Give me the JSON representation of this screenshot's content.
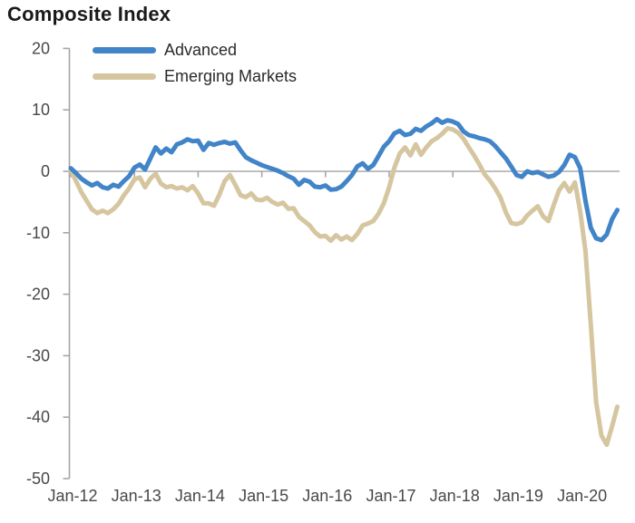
{
  "title": "Composite Index",
  "legend": [
    {
      "label": "Advanced",
      "color": "#4184c8"
    },
    {
      "label": "Emerging Markets",
      "color": "#d5c6a0"
    }
  ],
  "axes": {
    "y_tick_labels": [
      "20",
      "10",
      "0",
      "-10",
      "-20",
      "-30",
      "-40",
      "-50"
    ],
    "x_tick_labels": [
      "Jan-12",
      "Jan-13",
      "Jan-14",
      "Jan-15",
      "Jan-16",
      "Jan-17",
      "Jan-18",
      "Jan-19",
      "Jan-20"
    ]
  },
  "colors": {
    "axis": "#a6a6a6",
    "zero_line": "#aaaaaa",
    "tick_text": "#484848",
    "title_text": "#1a1a1a",
    "background": "#ffffff"
  },
  "chart_data": {
    "type": "line",
    "title": "Composite Index",
    "xlabel": "",
    "ylabel": "",
    "x_start": "Jan-2012",
    "x_end": "Aug-2020",
    "x_frequency": "monthly",
    "ylim": [
      -50,
      20
    ],
    "y_ticks": [
      20,
      10,
      0,
      -10,
      -20,
      -30,
      -40,
      -50
    ],
    "x_ticks": [
      "Jan-12",
      "Jan-13",
      "Jan-14",
      "Jan-15",
      "Jan-16",
      "Jan-17",
      "Jan-18",
      "Jan-19",
      "Jan-20"
    ],
    "grid": "zero-line-only",
    "legend_position": "top-left-inside",
    "series": [
      {
        "name": "Advanced",
        "color": "#4184c8",
        "values": [
          0.5,
          -0.3,
          -1.2,
          -1.8,
          -2.3,
          -1.9,
          -2.6,
          -2.8,
          -2.2,
          -2.5,
          -1.6,
          -0.8,
          0.6,
          1.1,
          0.3,
          2.1,
          3.9,
          2.9,
          3.7,
          3.1,
          4.4,
          4.7,
          5.2,
          4.9,
          5.0,
          3.5,
          4.6,
          4.3,
          4.6,
          4.8,
          4.5,
          4.7,
          3.4,
          2.3,
          1.8,
          1.4,
          1.0,
          0.7,
          0.4,
          0.1,
          -0.3,
          -0.8,
          -1.2,
          -2.2,
          -1.4,
          -1.7,
          -2.5,
          -2.6,
          -2.3,
          -3.0,
          -2.9,
          -2.5,
          -1.6,
          -0.6,
          0.8,
          1.3,
          0.4,
          1.0,
          2.5,
          4.0,
          4.9,
          6.2,
          6.6,
          5.9,
          6.1,
          6.9,
          6.6,
          7.3,
          7.8,
          8.5,
          7.9,
          8.3,
          8.1,
          7.7,
          6.5,
          5.9,
          5.7,
          5.4,
          5.2,
          4.9,
          4.1,
          3.1,
          2.1,
          0.8,
          -0.6,
          -0.9,
          0.0,
          -0.3,
          -0.1,
          -0.5,
          -0.9,
          -0.7,
          -0.1,
          1.0,
          2.7,
          2.3,
          0.5,
          -4.8,
          -9.2,
          -10.9,
          -11.2,
          -10.3,
          -7.8,
          -6.3
        ]
      },
      {
        "name": "Emerging Markets",
        "color": "#d5c6a0",
        "values": [
          0.2,
          -1.6,
          -3.4,
          -4.8,
          -6.2,
          -6.8,
          -6.4,
          -6.8,
          -6.2,
          -5.3,
          -3.9,
          -2.8,
          -1.3,
          -1.0,
          -2.6,
          -1.2,
          -0.4,
          -2.0,
          -2.6,
          -2.4,
          -2.8,
          -2.6,
          -3.1,
          -2.4,
          -3.6,
          -5.2,
          -5.2,
          -5.6,
          -3.8,
          -1.6,
          -0.6,
          -2.2,
          -3.9,
          -4.2,
          -3.6,
          -4.6,
          -4.7,
          -4.3,
          -5.0,
          -5.4,
          -5.1,
          -6.1,
          -6.0,
          -7.4,
          -8.1,
          -8.8,
          -9.9,
          -10.6,
          -10.5,
          -11.3,
          -10.4,
          -11.1,
          -10.6,
          -11.2,
          -10.2,
          -8.8,
          -8.5,
          -8.1,
          -6.9,
          -5.2,
          -2.6,
          0.6,
          2.9,
          3.9,
          2.6,
          4.4,
          2.7,
          3.9,
          4.9,
          5.4,
          6.1,
          7.0,
          6.8,
          6.3,
          5.3,
          3.9,
          2.6,
          1.1,
          -0.5,
          -1.5,
          -2.8,
          -4.3,
          -6.7,
          -8.4,
          -8.6,
          -8.3,
          -7.2,
          -6.4,
          -5.7,
          -7.3,
          -8.1,
          -5.5,
          -3.1,
          -1.9,
          -3.3,
          -1.8,
          -6.5,
          -13.0,
          -25.0,
          -37.5,
          -43.0,
          -44.5,
          -41.5,
          -38.3
        ]
      }
    ]
  }
}
